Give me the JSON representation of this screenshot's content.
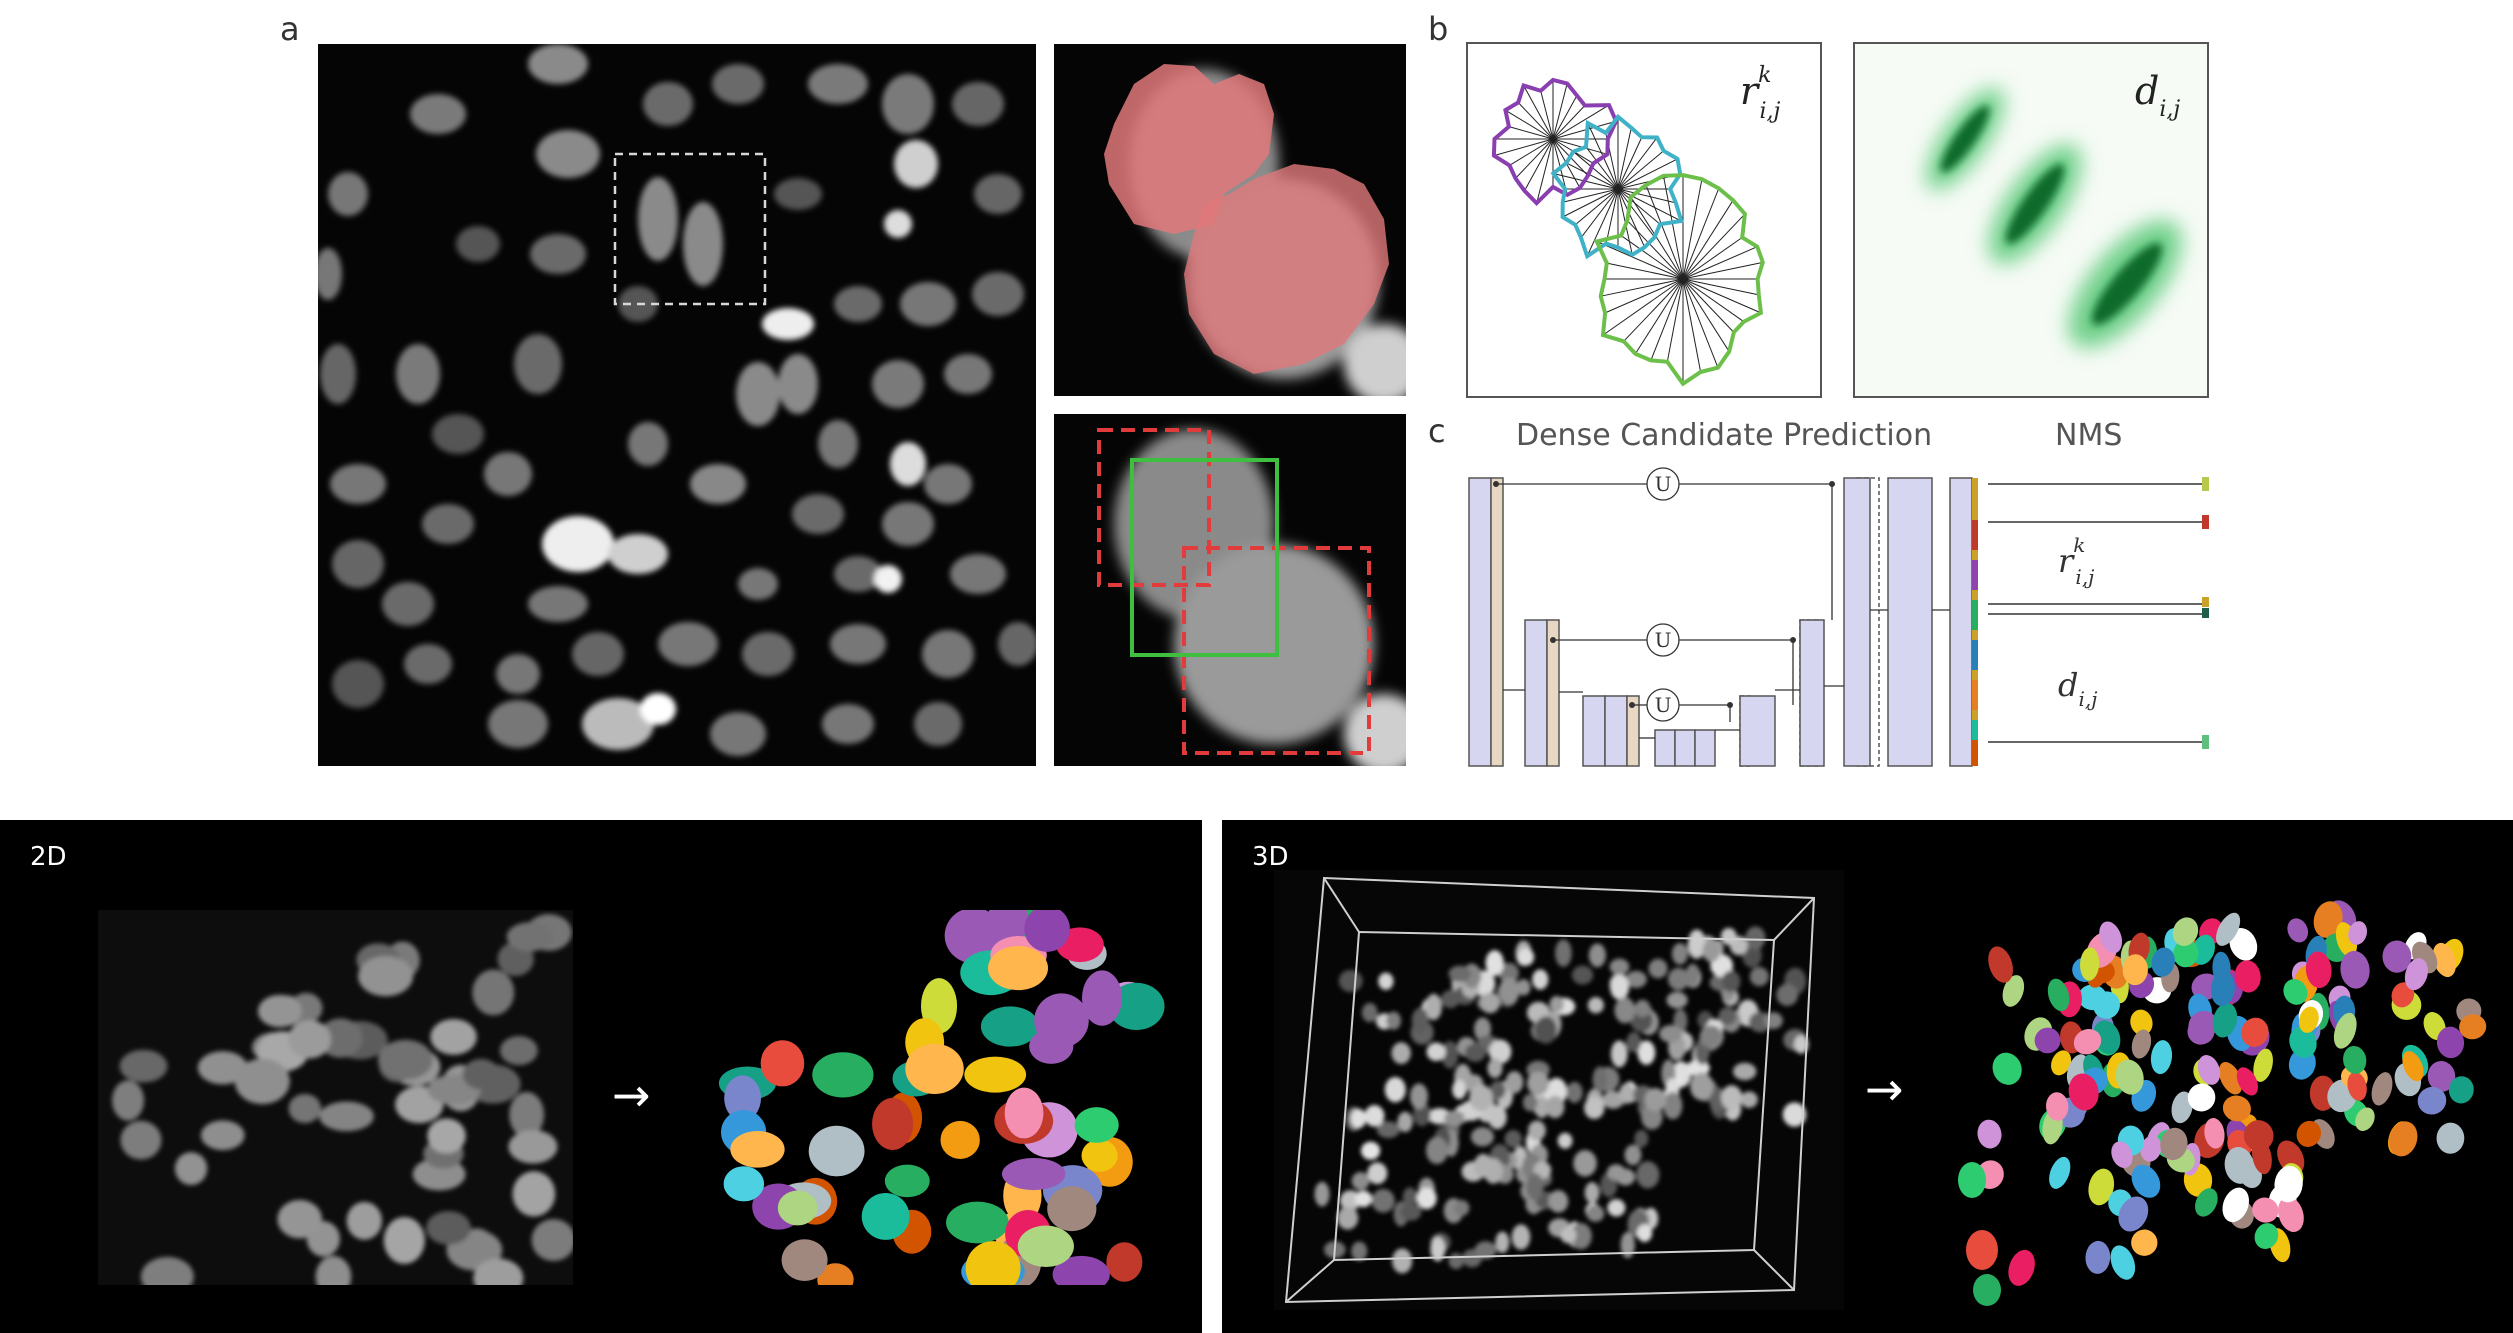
{
  "panels": {
    "a": {
      "label": "a"
    },
    "b": {
      "label": "b",
      "ray_label": "r",
      "ray_sup": "k",
      "ray_sub": "i,j",
      "prob_label": "d",
      "prob_sub": "i,j"
    },
    "c": {
      "label": "c",
      "title": "Dense Candidate Prediction",
      "nms_label": "NMS",
      "ray_label": "r",
      "ray_sup": "k",
      "ray_sub": "i,j",
      "prob_label": "d",
      "prob_sub": "i,j",
      "concat_symbol": "U"
    }
  },
  "bottom": {
    "left": {
      "label": "2D",
      "arrow": "→"
    },
    "right": {
      "label": "3D",
      "arrow": "→"
    }
  },
  "colors": {
    "overlay_red": "#e0787a",
    "box_green": "#3fbf3f",
    "box_red_dashed": "#e23b3b",
    "poly_purple": "#8a3fb0",
    "poly_cyan": "#3fb2c8",
    "poly_green": "#6cc04a",
    "unet_block": "#d6d6f0",
    "unet_tan": "#e8d7c2"
  }
}
